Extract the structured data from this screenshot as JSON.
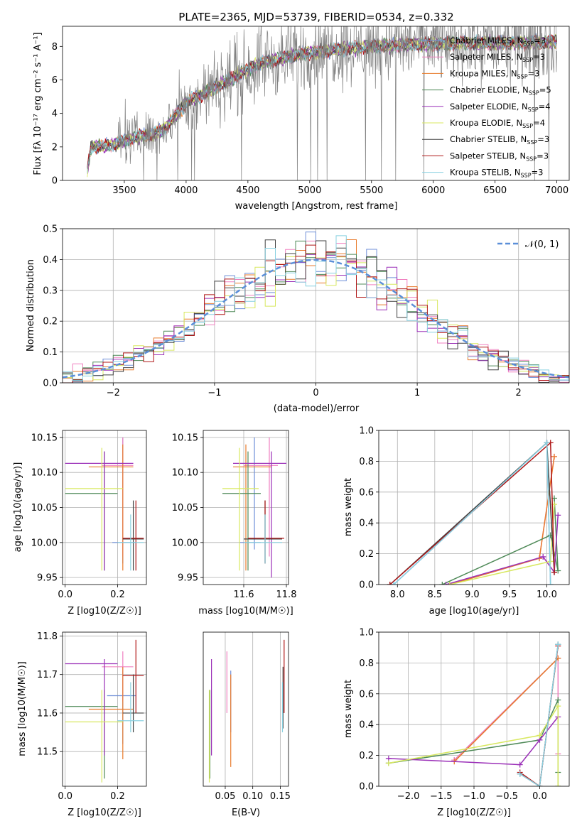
{
  "colors": {
    "chabrier_miles": "#6f8fd8",
    "salpeter_miles": "#f080c0",
    "kroupa_miles": "#e87b2c",
    "chabrier_elodie": "#4f8a58",
    "salpeter_elodie": "#9b30b8",
    "kroupa_elodie": "#d8e860",
    "chabrier_stelib": "#404040",
    "salpeter_stelib": "#b01818",
    "kroupa_stelib": "#88d0e0",
    "data": "#808080",
    "normal": "#5b8fd8"
  },
  "models": [
    {
      "label": "Chabrier MILES, N",
      "sub": "SSP",
      "suffix": "=3",
      "color_key": "chabrier_miles"
    },
    {
      "label": "Salpeter MILES, N",
      "sub": "SSP",
      "suffix": "=3",
      "color_key": "salpeter_miles"
    },
    {
      "label": "Kroupa MILES, N",
      "sub": "SSP",
      "suffix": "=3",
      "color_key": "kroupa_miles"
    },
    {
      "label": "Chabrier ELODIE, N",
      "sub": "SSP",
      "suffix": "=5",
      "color_key": "chabrier_elodie"
    },
    {
      "label": "Salpeter ELODIE, N",
      "sub": "SSP",
      "suffix": "=4",
      "color_key": "salpeter_elodie"
    },
    {
      "label": "Kroupa ELODIE, N",
      "sub": "SSP",
      "suffix": "=4",
      "color_key": "kroupa_elodie"
    },
    {
      "label": "Chabrier STELIB, N",
      "sub": "SSP",
      "suffix": "=3",
      "color_key": "chabrier_stelib"
    },
    {
      "label": "Salpeter STELIB, N",
      "sub": "SSP",
      "suffix": "=3",
      "color_key": "salpeter_stelib"
    },
    {
      "label": "Kroupa STELIB, N",
      "sub": "SSP",
      "suffix": "=3",
      "color_key": "kroupa_stelib"
    }
  ],
  "chart_data": [
    {
      "id": "spectrum",
      "type": "line",
      "title": "PLATE=2365, MJD=53739, FIBERID=0534, z=0.332",
      "xlabel": "wavelength [Angstrom, rest frame]",
      "ylabel": "Flux [fλ 10⁻¹⁷ erg cm⁻² s⁻¹ A⁻¹]",
      "xlim": [
        3000,
        7100
      ],
      "ylim": [
        0,
        9.2
      ],
      "xticks": [
        3500,
        4000,
        4500,
        5000,
        5500,
        6000,
        6500,
        7000
      ],
      "yticks": [
        0,
        2,
        4,
        6,
        8
      ],
      "data_start": 3200,
      "data_end": 7000,
      "continuum": [
        [
          3200,
          0.5
        ],
        [
          3230,
          2.0
        ],
        [
          3400,
          2.1
        ],
        [
          3600,
          2.6
        ],
        [
          3800,
          2.9
        ],
        [
          4000,
          4.6
        ],
        [
          4300,
          5.8
        ],
        [
          4600,
          7.0
        ],
        [
          4900,
          7.5
        ],
        [
          5200,
          7.8
        ],
        [
          5500,
          8.0
        ],
        [
          5800,
          8.1
        ],
        [
          6200,
          8.2
        ],
        [
          6600,
          8.2
        ],
        [
          7000,
          8.3
        ]
      ],
      "legend_position": "upper right"
    },
    {
      "id": "residuals",
      "type": "line",
      "xlabel": "(data-model)/error",
      "ylabel": "Normed distribution",
      "xlim": [
        -2.5,
        2.5
      ],
      "ylim": [
        0,
        0.5
      ],
      "xticks": [
        -2,
        -1,
        0,
        1,
        2
      ],
      "yticks": [
        0.0,
        0.1,
        0.2,
        0.3,
        0.4,
        0.5
      ],
      "normal_label": "𝒩(0, 1)",
      "bin_width": 0.1,
      "grid": true,
      "legend_position": "upper right"
    },
    {
      "id": "age_vs_Z",
      "type": "scatter",
      "xlabel": "Z [log10(Z/Z☉)]",
      "ylabel": "age  [log10(age/yr)]",
      "xlim": [
        -0.01,
        0.31
      ],
      "ylim": [
        9.94,
        10.16
      ],
      "xticks": [
        0.0,
        0.2
      ],
      "yticks": [
        9.95,
        10.0,
        10.05,
        10.1,
        10.15
      ],
      "points": [
        {
          "color_key": "chabrier_miles",
          "x": 0.22,
          "y": 10.0,
          "xerr": [
            0.18,
            0.27
          ],
          "yerr": [
            9.97,
            10.15
          ]
        },
        {
          "color_key": "salpeter_miles",
          "x": 0.22,
          "y": 10.11,
          "xerr": [
            0.14,
            0.26
          ],
          "yerr": [
            9.98,
            10.15
          ]
        },
        {
          "color_key": "kroupa_miles",
          "x": 0.22,
          "y": 10.108,
          "xerr": [
            0.09,
            0.26
          ],
          "yerr": [
            9.96,
            10.14
          ]
        },
        {
          "color_key": "chabrier_elodie",
          "x": 0.15,
          "y": 10.07,
          "xerr": [
            0.0,
            0.2
          ],
          "yerr": [
            9.96,
            10.13
          ]
        },
        {
          "color_key": "salpeter_elodie",
          "x": 0.15,
          "y": 10.113,
          "xerr": [
            0.0,
            0.26
          ],
          "yerr": [
            9.96,
            10.13
          ]
        },
        {
          "color_key": "kroupa_elodie",
          "x": 0.14,
          "y": 10.077,
          "xerr": [
            0.0,
            0.22
          ],
          "yerr": [
            9.96,
            10.135
          ]
        },
        {
          "color_key": "chabrier_stelib",
          "x": 0.26,
          "y": 10.005,
          "xerr": [
            0.22,
            0.3
          ],
          "yerr": [
            9.96,
            10.06
          ]
        },
        {
          "color_key": "salpeter_stelib",
          "x": 0.27,
          "y": 10.006,
          "xerr": [
            0.22,
            0.3
          ],
          "yerr": [
            9.96,
            10.06
          ]
        },
        {
          "color_key": "kroupa_stelib",
          "x": 0.25,
          "y": 10.0,
          "xerr": [
            0.2,
            0.3
          ],
          "yerr": [
            9.96,
            10.04
          ]
        }
      ]
    },
    {
      "id": "age_vs_mass",
      "type": "scatter",
      "xlabel": "mass [log10(M/M☉)]",
      "ylabel": "",
      "xlim": [
        11.41,
        11.81
      ],
      "ylim": [
        9.94,
        10.16
      ],
      "xticks": [
        11.6,
        11.8
      ],
      "yticks": [
        9.95,
        10.0,
        10.05,
        10.1,
        10.15
      ],
      "points": [
        {
          "color_key": "chabrier_miles",
          "x": 11.65,
          "y": 10.0,
          "xerr": [
            11.58,
            11.68
          ],
          "yerr": [
            9.99,
            10.15
          ]
        },
        {
          "color_key": "salpeter_miles",
          "x": 11.72,
          "y": 10.11,
          "xerr": [
            11.6,
            11.76
          ],
          "yerr": [
            9.98,
            10.15
          ]
        },
        {
          "color_key": "kroupa_miles",
          "x": 11.61,
          "y": 10.108,
          "xerr": [
            11.55,
            11.73
          ],
          "yerr": [
            9.96,
            10.14
          ]
        },
        {
          "color_key": "chabrier_elodie",
          "x": 11.62,
          "y": 10.07,
          "xerr": [
            11.5,
            11.68
          ],
          "yerr": [
            9.96,
            10.13
          ]
        },
        {
          "color_key": "salpeter_elodie",
          "x": 11.73,
          "y": 10.113,
          "xerr": [
            11.55,
            11.8
          ],
          "yerr": [
            9.95,
            10.13
          ]
        },
        {
          "color_key": "kroupa_elodie",
          "x": 11.58,
          "y": 10.077,
          "xerr": [
            11.5,
            11.67
          ],
          "yerr": [
            9.96,
            10.135
          ]
        },
        {
          "color_key": "chabrier_stelib",
          "x": 11.7,
          "y": 10.005,
          "xerr": [
            11.6,
            11.78
          ],
          "yerr": [
            9.97,
            10.06
          ]
        },
        {
          "color_key": "salpeter_stelib",
          "x": 11.7,
          "y": 10.006,
          "xerr": [
            11.62,
            11.79
          ],
          "yerr": [
            9.97,
            10.06
          ]
        },
        {
          "color_key": "kroupa_stelib",
          "x": 11.7,
          "y": 10.0,
          "xerr": [
            11.6,
            11.78
          ],
          "yerr": [
            9.97,
            10.04
          ]
        }
      ]
    },
    {
      "id": "mass_vs_Z",
      "type": "scatter",
      "xlabel": "Z [log10(Z/Z☉)]",
      "ylabel": "mass [log10(M/M☉)]",
      "xlim": [
        -0.01,
        0.31
      ],
      "ylim": [
        11.41,
        11.81
      ],
      "xticks": [
        0.0,
        0.2
      ],
      "yticks": [
        11.5,
        11.6,
        11.7,
        11.8
      ],
      "points": [
        {
          "color_key": "chabrier_miles",
          "x": 0.22,
          "y": 11.645,
          "xerr": [
            0.16,
            0.27
          ],
          "yerr": [
            11.52,
            11.71
          ]
        },
        {
          "color_key": "salpeter_miles",
          "x": 0.22,
          "y": 11.72,
          "xerr": [
            0.14,
            0.26
          ],
          "yerr": [
            11.63,
            11.76
          ]
        },
        {
          "color_key": "kroupa_miles",
          "x": 0.22,
          "y": 11.61,
          "xerr": [
            0.09,
            0.26
          ],
          "yerr": [
            11.48,
            11.72
          ]
        },
        {
          "color_key": "chabrier_elodie",
          "x": 0.15,
          "y": 11.617,
          "xerr": [
            0.0,
            0.2
          ],
          "yerr": [
            11.43,
            11.66
          ]
        },
        {
          "color_key": "salpeter_elodie",
          "x": 0.15,
          "y": 11.728,
          "xerr": [
            0.0,
            0.2
          ],
          "yerr": [
            11.49,
            11.74
          ]
        },
        {
          "color_key": "kroupa_elodie",
          "x": 0.14,
          "y": 11.577,
          "xerr": [
            0.0,
            0.22
          ],
          "yerr": [
            11.42,
            11.66
          ]
        },
        {
          "color_key": "chabrier_stelib",
          "x": 0.26,
          "y": 11.6,
          "xerr": [
            0.22,
            0.3
          ],
          "yerr": [
            11.55,
            11.7
          ]
        },
        {
          "color_key": "salpeter_stelib",
          "x": 0.27,
          "y": 11.697,
          "xerr": [
            0.22,
            0.3
          ],
          "yerr": [
            11.6,
            11.79
          ]
        },
        {
          "color_key": "kroupa_stelib",
          "x": 0.25,
          "y": 11.58,
          "xerr": [
            0.2,
            0.3
          ],
          "yerr": [
            11.55,
            11.68
          ]
        }
      ]
    },
    {
      "id": "mass_vs_ebv",
      "type": "scatter",
      "xlabel": "E(B-V)",
      "ylabel": "",
      "xlim": [
        0.01,
        0.165
      ],
      "ylim": [
        11.41,
        11.81
      ],
      "xticks": [
        0.05,
        0.1,
        0.15
      ],
      "tick_labels": [
        "0.05",
        "0.10",
        "0.15"
      ],
      "points": [
        {
          "color_key": "chabrier_miles",
          "x": 0.06,
          "y": 11.645,
          "yerr": [
            11.55,
            11.71
          ]
        },
        {
          "color_key": "salpeter_miles",
          "x": 0.053,
          "y": 11.72,
          "yerr": [
            11.6,
            11.76
          ]
        },
        {
          "color_key": "kroupa_miles",
          "x": 0.06,
          "y": 11.61,
          "yerr": [
            11.46,
            11.7
          ]
        },
        {
          "color_key": "chabrier_elodie",
          "x": 0.022,
          "y": 11.617,
          "yerr": [
            11.43,
            11.66
          ]
        },
        {
          "color_key": "salpeter_elodie",
          "x": 0.025,
          "y": 11.728,
          "yerr": [
            11.49,
            11.74
          ]
        },
        {
          "color_key": "kroupa_elodie",
          "x": 0.021,
          "y": 11.577,
          "yerr": [
            11.42,
            11.66
          ]
        },
        {
          "color_key": "chabrier_stelib",
          "x": 0.155,
          "y": 11.6,
          "yerr": [
            11.56,
            11.72
          ]
        },
        {
          "color_key": "salpeter_stelib",
          "x": 0.157,
          "y": 11.697,
          "yerr": [
            11.6,
            11.79
          ]
        },
        {
          "color_key": "kroupa_stelib",
          "x": 0.154,
          "y": 11.58,
          "yerr": [
            11.55,
            11.68
          ]
        }
      ]
    },
    {
      "id": "weight_vs_age",
      "type": "line",
      "xlabel": "age  [log10(age/yr)]",
      "ylabel": "mass weight",
      "xlim": [
        7.75,
        10.3
      ],
      "ylim": [
        0,
        1.0
      ],
      "xticks": [
        8.0,
        8.5,
        9.0,
        9.5,
        10.0
      ],
      "yticks": [
        0.0,
        0.2,
        0.4,
        0.6,
        0.8,
        1.0
      ],
      "series": [
        {
          "color_key": "chabrier_miles",
          "points": [
            [
              7.95,
              0.0
            ],
            [
              10.0,
              0.92
            ],
            [
              10.05,
              0.0
            ]
          ]
        },
        {
          "color_key": "salpeter_miles",
          "points": [
            [
              8.7,
              0.0
            ],
            [
              9.9,
              0.17
            ],
            [
              10.1,
              0.83
            ]
          ]
        },
        {
          "color_key": "kroupa_miles",
          "points": [
            [
              8.7,
              0.0
            ],
            [
              9.9,
              0.17
            ],
            [
              10.1,
              0.83
            ]
          ]
        },
        {
          "color_key": "chabrier_elodie",
          "points": [
            [
              8.6,
              0.0
            ],
            [
              10.05,
              0.32
            ],
            [
              10.15,
              0.09
            ],
            [
              10.1,
              0.56
            ]
          ]
        },
        {
          "color_key": "salpeter_elodie",
          "points": [
            [
              8.65,
              0.0
            ],
            [
              9.95,
              0.18
            ],
            [
              10.1,
              0.08
            ],
            [
              10.15,
              0.45
            ]
          ]
        },
        {
          "color_key": "kroupa_elodie",
          "points": [
            [
              8.7,
              0.0
            ],
            [
              10.05,
              0.15
            ],
            [
              10.1,
              0.52
            ]
          ]
        },
        {
          "color_key": "chabrier_stelib",
          "points": [
            [
              7.9,
              0.0
            ],
            [
              10.0,
              0.92
            ],
            [
              10.1,
              0.08
            ]
          ]
        },
        {
          "color_key": "salpeter_stelib",
          "points": [
            [
              7.9,
              0.0
            ],
            [
              10.05,
              0.92
            ],
            [
              10.1,
              0.08
            ]
          ]
        },
        {
          "color_key": "kroupa_stelib",
          "points": [
            [
              7.95,
              0.0
            ],
            [
              10.0,
              0.92
            ],
            [
              10.05,
              0.0
            ]
          ]
        }
      ]
    },
    {
      "id": "weight_vs_Z",
      "type": "line",
      "xlabel": "Z [log10(Z/Z☉)]",
      "ylabel": "mass weight",
      "xlim": [
        -2.45,
        0.45
      ],
      "ylim": [
        0,
        1.0
      ],
      "xticks": [
        -2.0,
        -1.5,
        -1.0,
        -0.5,
        0.0
      ],
      "yticks": [
        0.0,
        0.2,
        0.4,
        0.6,
        0.8,
        1.0
      ],
      "series": [
        {
          "color_key": "chabrier_miles",
          "points": [
            [
              -1.3,
              0.17
            ],
            [
              0.28,
              0.83
            ]
          ]
        },
        {
          "color_key": "salpeter_miles",
          "points": [
            [
              -1.3,
              0.17
            ],
            [
              0.28,
              0.83
            ],
            [
              0.28,
              0.21
            ]
          ]
        },
        {
          "color_key": "kroupa_miles",
          "points": [
            [
              -1.3,
              0.16
            ],
            [
              0.28,
              0.83
            ]
          ]
        },
        {
          "color_key": "chabrier_elodie",
          "points": [
            [
              -2.3,
              0.15
            ],
            [
              0.0,
              0.3
            ],
            [
              0.28,
              0.56
            ],
            [
              0.28,
              0.09
            ],
            [
              0.28,
              0.0
            ]
          ]
        },
        {
          "color_key": "salpeter_elodie",
          "points": [
            [
              -2.3,
              0.18
            ],
            [
              -0.3,
              0.14
            ],
            [
              0.0,
              0.3
            ],
            [
              0.28,
              0.45
            ]
          ]
        },
        {
          "color_key": "kroupa_elodie",
          "points": [
            [
              -2.3,
              0.15
            ],
            [
              0.0,
              0.33
            ],
            [
              0.28,
              0.52
            ],
            [
              0.28,
              0.0
            ]
          ]
        },
        {
          "color_key": "chabrier_stelib",
          "points": [
            [
              -0.3,
              0.08
            ],
            [
              0.0,
              0.0
            ],
            [
              0.28,
              0.92
            ]
          ]
        },
        {
          "color_key": "salpeter_stelib",
          "points": [
            [
              -0.3,
              0.09
            ],
            [
              0.0,
              0.0
            ],
            [
              0.28,
              0.91
            ]
          ]
        },
        {
          "color_key": "kroupa_stelib",
          "points": [
            [
              -0.3,
              0.08
            ],
            [
              0.0,
              0.0
            ],
            [
              0.28,
              0.92
            ]
          ]
        }
      ]
    }
  ]
}
